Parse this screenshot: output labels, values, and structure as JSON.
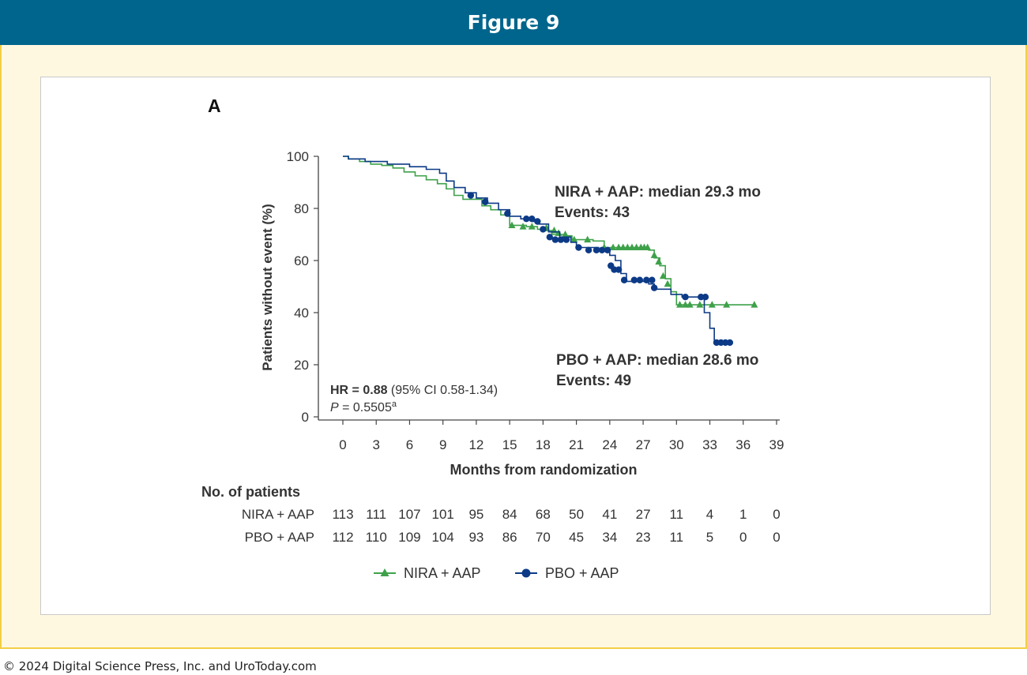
{
  "header": {
    "title": "Figure 9"
  },
  "footer": {
    "copyright": "© 2024 Digital Science Press, Inc. and UroToday.com"
  },
  "panel": {
    "label": "A"
  },
  "colors": {
    "nira": "#3ea14a",
    "pbo": "#0c3a86",
    "header_bg": "#00658c",
    "frame_bg": "#fff8e1",
    "frame_border": "#f2cf45"
  },
  "chart_data": {
    "type": "line",
    "subtype": "kaplan-meier",
    "xlabel": "Months from randomization",
    "ylabel": "Patients without event (%)",
    "xlim": [
      0,
      39
    ],
    "ylim": [
      0,
      100
    ],
    "xticks": [
      0,
      3,
      6,
      9,
      12,
      15,
      18,
      21,
      24,
      27,
      30,
      33,
      36,
      39
    ],
    "yticks": [
      0,
      20,
      40,
      60,
      80,
      100
    ],
    "hr_label": "HR = 0.88",
    "hr_ci": " (95% CI 0.58-1.34)",
    "p_symbol": "P",
    "p_value": " = 0.5505",
    "p_superscript": "a",
    "series": [
      {
        "name": "NIRA + AAP",
        "marker": "triangle",
        "annotation_line1": "NIRA + AAP: median 29.3 mo",
        "annotation_line2": "Events: 43",
        "steps": [
          [
            0,
            100
          ],
          [
            0.5,
            99
          ],
          [
            1.5,
            98
          ],
          [
            2.5,
            97
          ],
          [
            3.5,
            96.5
          ],
          [
            4.5,
            95.5
          ],
          [
            5.5,
            94
          ],
          [
            6.5,
            92.5
          ],
          [
            7.5,
            91
          ],
          [
            8.5,
            89.5
          ],
          [
            9.3,
            87.5
          ],
          [
            10,
            85
          ],
          [
            10.8,
            83.5
          ],
          [
            12.5,
            81
          ],
          [
            13.3,
            79.5
          ],
          [
            14.2,
            77.5
          ],
          [
            15,
            73.5
          ],
          [
            16.5,
            73
          ],
          [
            17.5,
            72
          ],
          [
            18,
            71.5
          ],
          [
            18.8,
            70
          ],
          [
            20,
            69.5
          ],
          [
            20.6,
            68
          ],
          [
            22.5,
            67.5
          ],
          [
            23.5,
            65
          ],
          [
            27.5,
            64
          ],
          [
            28,
            61
          ],
          [
            28.5,
            58
          ],
          [
            29,
            53
          ],
          [
            29.5,
            48
          ],
          [
            30,
            43
          ],
          [
            37,
            43
          ]
        ],
        "censored": [
          [
            15.2,
            73.5
          ],
          [
            16.2,
            73
          ],
          [
            17,
            73
          ],
          [
            18.3,
            72.5
          ],
          [
            19,
            71.5
          ],
          [
            19.4,
            70.5
          ],
          [
            20,
            70
          ],
          [
            20.8,
            68
          ],
          [
            22,
            68
          ],
          [
            23.5,
            65
          ],
          [
            24.3,
            65
          ],
          [
            24.8,
            65
          ],
          [
            25.2,
            65
          ],
          [
            25.6,
            65
          ],
          [
            26,
            65
          ],
          [
            26.4,
            65
          ],
          [
            26.8,
            65
          ],
          [
            27.1,
            65
          ],
          [
            27.4,
            65
          ],
          [
            28,
            62
          ],
          [
            28.4,
            59.5
          ],
          [
            28.8,
            54
          ],
          [
            29.2,
            51
          ],
          [
            30.3,
            43
          ],
          [
            30.8,
            43
          ],
          [
            31.2,
            43
          ],
          [
            32.1,
            43
          ],
          [
            33.2,
            43
          ],
          [
            34.5,
            43
          ],
          [
            37,
            43
          ]
        ]
      },
      {
        "name": "PBO + AAP",
        "marker": "circle",
        "annotation_line1": "PBO + AAP: median 28.6 mo",
        "annotation_line2": "Events: 49",
        "steps": [
          [
            0,
            100
          ],
          [
            0.5,
            99
          ],
          [
            2,
            98
          ],
          [
            4,
            97
          ],
          [
            6,
            96
          ],
          [
            7.5,
            95
          ],
          [
            8.7,
            93.5
          ],
          [
            9.3,
            90.5
          ],
          [
            10,
            88
          ],
          [
            11,
            86
          ],
          [
            12,
            84
          ],
          [
            13,
            82
          ],
          [
            14,
            79.5
          ],
          [
            15,
            77
          ],
          [
            16,
            76
          ],
          [
            17,
            75
          ],
          [
            17.5,
            74
          ],
          [
            18.5,
            71
          ],
          [
            19.5,
            69
          ],
          [
            20.5,
            67
          ],
          [
            21,
            65
          ],
          [
            23,
            64
          ],
          [
            24,
            62
          ],
          [
            24.5,
            60
          ],
          [
            25,
            55
          ],
          [
            25.5,
            52
          ],
          [
            27.5,
            51
          ],
          [
            28,
            49
          ],
          [
            29.5,
            47
          ],
          [
            30.5,
            46
          ],
          [
            32.5,
            40
          ],
          [
            33,
            34
          ],
          [
            33.4,
            28.5
          ],
          [
            35,
            28.5
          ]
        ],
        "censored": [
          [
            11.5,
            85
          ],
          [
            12.8,
            82.5
          ],
          [
            14.8,
            78
          ],
          [
            16.5,
            76
          ],
          [
            17,
            76
          ],
          [
            17.5,
            75
          ],
          [
            18,
            72
          ],
          [
            18.6,
            69
          ],
          [
            19.1,
            68
          ],
          [
            19.6,
            68
          ],
          [
            20.1,
            68
          ],
          [
            21.2,
            65
          ],
          [
            22.1,
            64
          ],
          [
            22.8,
            64
          ],
          [
            23.3,
            64
          ],
          [
            23.8,
            64
          ],
          [
            24.1,
            58
          ],
          [
            24.4,
            56.5
          ],
          [
            24.8,
            56.5
          ],
          [
            25.3,
            52.5
          ],
          [
            26.2,
            52.5
          ],
          [
            26.7,
            52.5
          ],
          [
            27.3,
            52.5
          ],
          [
            27.8,
            52.5
          ],
          [
            28,
            49.5
          ],
          [
            30.8,
            46
          ],
          [
            32.2,
            46
          ],
          [
            32.6,
            46
          ],
          [
            33.6,
            28.5
          ],
          [
            34,
            28.5
          ],
          [
            34.4,
            28.5
          ],
          [
            34.8,
            28.5
          ]
        ]
      }
    ],
    "risk_table": {
      "title": "No. of patients",
      "rows": [
        {
          "label": "NIRA + AAP",
          "values": [
            113,
            111,
            107,
            101,
            95,
            84,
            68,
            50,
            41,
            27,
            11,
            4,
            1,
            0
          ]
        },
        {
          "label": "PBO + AAP",
          "values": [
            112,
            110,
            109,
            104,
            93,
            86,
            70,
            45,
            34,
            23,
            11,
            5,
            0,
            0
          ]
        }
      ]
    },
    "legend": {
      "placement": "bottom-center",
      "items": [
        "NIRA + AAP",
        "PBO + AAP"
      ]
    },
    "grid": false
  }
}
